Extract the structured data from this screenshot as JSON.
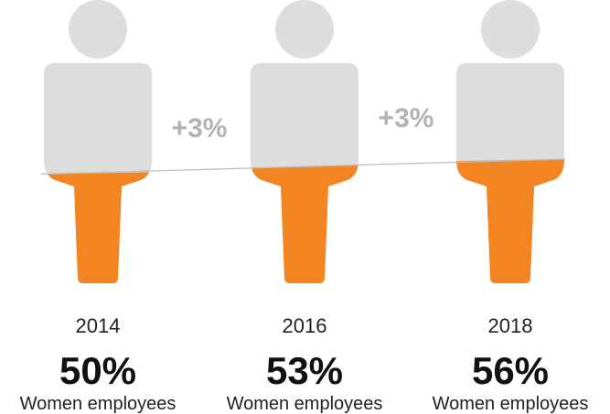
{
  "chart_data": {
    "type": "pictograph",
    "categories": [
      "2014",
      "2016",
      "2018"
    ],
    "values": [
      50,
      53,
      56
    ],
    "value_labels": [
      "50%",
      "53%",
      "56%"
    ],
    "description": [
      "Women employees",
      "Women employees",
      "Women employees"
    ],
    "changes": [
      "+3%",
      "+3%"
    ],
    "ylim": [
      0,
      100
    ],
    "colors": {
      "filled": "#f28522",
      "empty": "#dddddd",
      "trend_line": "#bdbdbd",
      "change_label": "#b3b3b3"
    }
  }
}
